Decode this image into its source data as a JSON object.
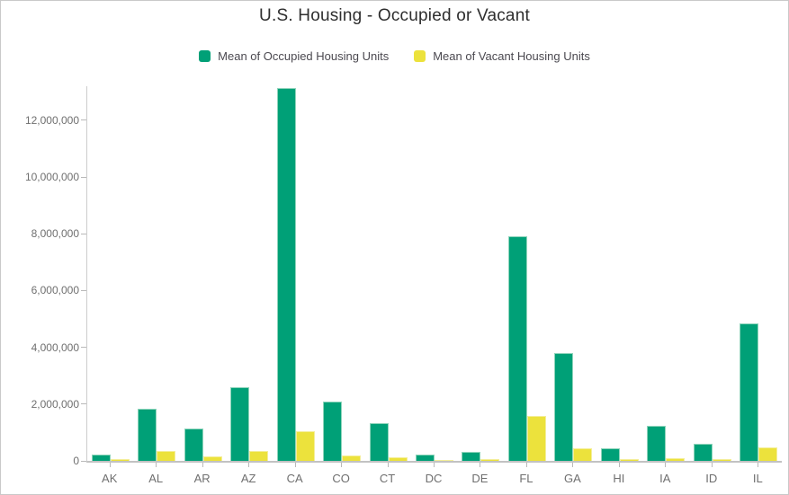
{
  "window": {
    "title": "U.S. Housing - Occupied or Vacant"
  },
  "chart_data": {
    "type": "bar",
    "title": "U.S. Housing - Occupied or Vacant",
    "xlabel": "",
    "ylabel": "",
    "categories": [
      "AK",
      "AL",
      "AR",
      "AZ",
      "CA",
      "CO",
      "CT",
      "DC",
      "DE",
      "FL",
      "GA",
      "HI",
      "IA",
      "ID",
      "IL"
    ],
    "series": [
      {
        "name": "Mean of Occupied Housing Units",
        "color": "#00a077",
        "border_color": "#8fd4bb",
        "values": [
          220000,
          1850000,
          1130000,
          2600000,
          13140000,
          2080000,
          1330000,
          230000,
          330000,
          7920000,
          3790000,
          440000,
          1250000,
          615000,
          4845000
        ]
      },
      {
        "name": "Mean of Vacant Housing Units",
        "color": "#ece23c",
        "border_color": "#f4ee9a",
        "values": [
          55000,
          350000,
          165000,
          360000,
          1040000,
          200000,
          125000,
          25000,
          75000,
          1590000,
          450000,
          60000,
          100000,
          65000,
          465000
        ]
      }
    ],
    "yticks": [
      0,
      2000000,
      4000000,
      6000000,
      8000000,
      10000000,
      12000000
    ],
    "ylim": [
      0,
      13200000
    ],
    "grid": false,
    "legend_position": "top",
    "axis_text_color": "#6f6f6f",
    "title_color": "#2e2e2e"
  }
}
